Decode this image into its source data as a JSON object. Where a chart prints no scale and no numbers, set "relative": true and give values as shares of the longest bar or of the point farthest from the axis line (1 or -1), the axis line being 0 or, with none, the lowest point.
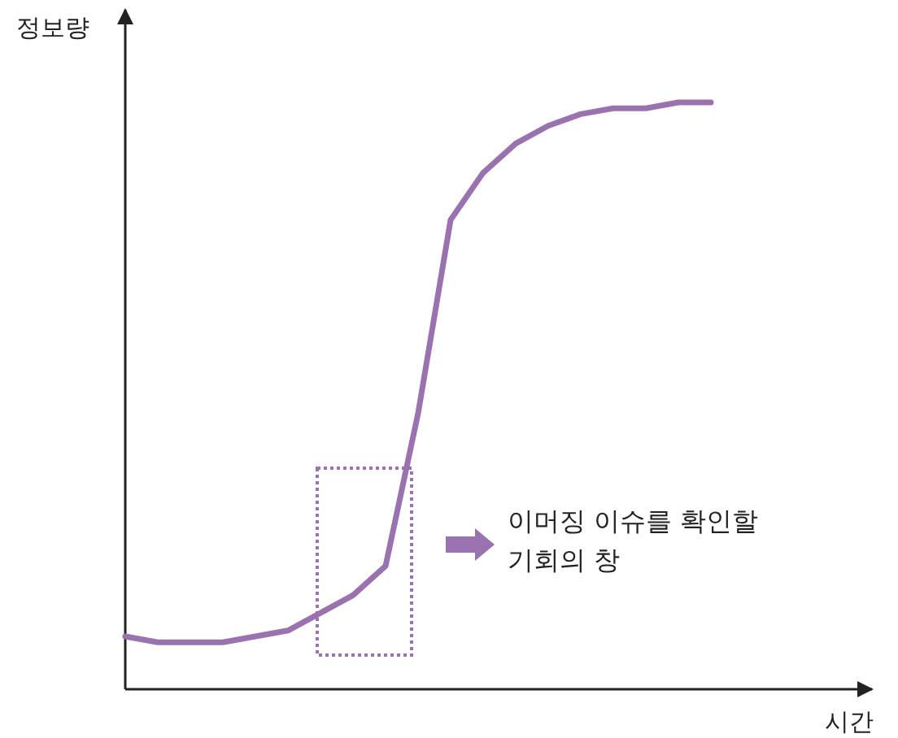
{
  "chart_data": {
    "type": "line",
    "relative": true,
    "xlabel": "시간",
    "ylabel": "정보량",
    "annotations": [
      "이머징 이슈를 확인할 기회의 창"
    ],
    "categories": [
      null,
      null,
      null,
      null,
      null,
      null,
      null,
      null,
      null,
      null,
      null,
      null,
      null,
      null,
      null,
      null,
      null,
      null,
      null,
      null,
      null,
      null,
      null
    ],
    "series": [
      {
        "color": "#9b72b0",
        "values": [
          0.09,
          0.08,
          0.08,
          0.08,
          0.09,
          0.1,
          0.13,
          0.16,
          0.21,
          0.47,
          0.8,
          0.88,
          0.93,
          0.96,
          0.98,
          0.99,
          0.99,
          1.0,
          1.0,
          null,
          null,
          null,
          null
        ]
      }
    ]
  }
}
